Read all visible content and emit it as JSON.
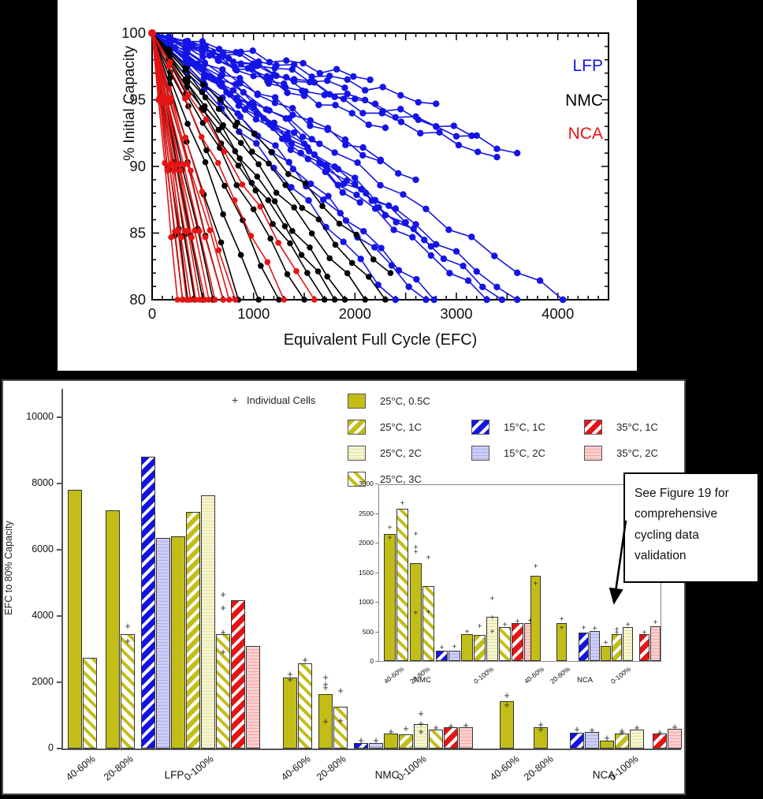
{
  "annotation": {
    "lines": [
      "See Figure 19 for",
      "comprehensive",
      "cycling data",
      "validation"
    ]
  },
  "chart_data": [
    {
      "type": "line",
      "title": "",
      "xlabel": "Equivalent Full Cycle (EFC)",
      "ylabel": "% Initial Capacity",
      "xlim": [
        0,
        4500
      ],
      "ylim": [
        80,
        100
      ],
      "xticks": [
        0,
        1000,
        2000,
        3000,
        4000
      ],
      "yticks": [
        80,
        85,
        90,
        95,
        100
      ],
      "grid": false,
      "legend_position": "upper right",
      "note": "Each line is one cell starting at (0,100); end = [EFC at last point, % capacity at last point], values approximate",
      "series": [
        {
          "name": "LFP",
          "color": "#1414e6",
          "lines": [
            [
              2400,
              80
            ],
            [
              2700,
              80
            ],
            [
              2780,
              80
            ],
            [
              3300,
              80
            ],
            [
              3450,
              80
            ],
            [
              3600,
              80
            ],
            [
              4050,
              80
            ],
            [
              3600,
              91
            ],
            [
              3400,
              90.7
            ],
            [
              3150,
              92.3
            ],
            [
              2800,
              94.7
            ],
            [
              2600,
              89
            ],
            [
              2300,
              92.9
            ],
            [
              2250,
              90.4
            ],
            [
              2050,
              87.3
            ],
            [
              2500,
              85.8
            ],
            [
              1900,
              95.9
            ],
            [
              1500,
              95.3
            ],
            [
              1300,
              96.2
            ],
            [
              1650,
              91.7
            ],
            [
              2750,
              84
            ],
            [
              2150,
              96.5
            ]
          ]
        },
        {
          "name": "NMC",
          "color": "#000000",
          "lines": [
            [
              300,
              80
            ],
            [
              350,
              80
            ],
            [
              420,
              80
            ],
            [
              500,
              80
            ],
            [
              600,
              80
            ],
            [
              700,
              80
            ],
            [
              850,
              80
            ],
            [
              1050,
              80
            ],
            [
              1250,
              80
            ],
            [
              1500,
              80
            ],
            [
              1700,
              80
            ],
            [
              1800,
              80
            ],
            [
              1900,
              80
            ],
            [
              2100,
              80
            ],
            [
              2300,
              80
            ],
            [
              2350,
              82
            ]
          ]
        },
        {
          "name": "NCA",
          "color": "#e61414",
          "lines": [
            [
              250,
              80
            ],
            [
              300,
              80
            ],
            [
              340,
              80
            ],
            [
              380,
              80
            ],
            [
              430,
              80
            ],
            [
              470,
              80
            ],
            [
              520,
              80
            ],
            [
              560,
              80
            ],
            [
              620,
              80
            ],
            [
              700,
              80
            ],
            [
              760,
              80
            ],
            [
              820,
              80
            ],
            [
              1300,
              80
            ],
            [
              1600,
              80
            ]
          ]
        }
      ]
    },
    {
      "type": "bar",
      "ylabel": "EFC to 80% Capacity",
      "ylim": [
        0,
        10000
      ],
      "yticks": [
        0,
        2000,
        4000,
        6000,
        8000,
        10000
      ],
      "marker_symbol": "+",
      "marker_note": "Individual Cells",
      "colors": {
        "olive": "#c2be17",
        "pale_yellow": "#f5f5cf",
        "blue": "#1414e0",
        "lavender": "#cdcdf6",
        "red": "#e61414",
        "pink": "#fbcfcf"
      },
      "legend": [
        {
          "label": "25°C, 0.5C",
          "pattern": "olive-solid"
        },
        {
          "label": "25°C, 1C",
          "pattern": "olive-hatch-dark"
        },
        {
          "label": "25°C, 2C",
          "pattern": "pale-lines"
        },
        {
          "label": "25°C, 3C",
          "pattern": "olive-hatch-light"
        },
        {
          "label": "15°C, 1C",
          "pattern": "blue-hatch"
        },
        {
          "label": "15°C, 2C",
          "pattern": "lavender-lines"
        },
        {
          "label": "35°C, 1C",
          "pattern": "red-hatch"
        },
        {
          "label": "35°C, 2C",
          "pattern": "pink-lines"
        }
      ],
      "groups": [
        {
          "chemistry": "LFP",
          "windows": [
            {
              "label": "40-60%",
              "bars": [
                {
                  "series": "25°C, 0.5C",
                  "pattern": "olive-solid",
                  "value": 7800
                },
                {
                  "series": "25°C, 1C",
                  "pattern": "olive-hatch-light",
                  "value": 2750
                }
              ]
            },
            {
              "label": "20-80%",
              "bars": [
                {
                  "series": "25°C, 0.5C",
                  "pattern": "olive-solid",
                  "value": 7200
                },
                {
                  "series": "25°C, 1C",
                  "pattern": "olive-hatch-light",
                  "value": 3450,
                  "plus": [
                    3700,
                    3250
                  ]
                }
              ]
            },
            {
              "label": "0-100%",
              "bars": [
                {
                  "series": "15°C, 1C",
                  "pattern": "blue-hatch",
                  "value": 8800
                },
                {
                  "series": "15°C, 2C",
                  "pattern": "lavender-lines",
                  "value": 6350
                },
                {
                  "series": "25°C, 0.5C",
                  "pattern": "olive-solid",
                  "value": 6400
                },
                {
                  "series": "25°C, 1C",
                  "pattern": "olive-hatch-dark",
                  "value": 7150
                },
                {
                  "series": "25°C, 2C",
                  "pattern": "pale-lines",
                  "value": 7650
                },
                {
                  "series": "25°C, 3C",
                  "pattern": "olive-hatch-light",
                  "value": 3450,
                  "plus": [
                    4650,
                    4250,
                    3500,
                    2900
                  ]
                },
                {
                  "series": "35°C, 1C",
                  "pattern": "red-hatch",
                  "value": 4480
                },
                {
                  "series": "35°C, 2C",
                  "pattern": "pink-lines",
                  "value": 3100
                }
              ]
            }
          ]
        },
        {
          "chemistry": "NMC",
          "windows": [
            {
              "label": "40-60%",
              "bars": [
                {
                  "series": "25°C, 0.5C",
                  "pattern": "olive-solid",
                  "value": 2150,
                  "plus": [
                    2250,
                    2080
                  ]
                },
                {
                  "series": "25°C, 1C",
                  "pattern": "olive-hatch-light",
                  "value": 2570,
                  "plus": [
                    2670
                  ]
                }
              ]
            },
            {
              "label": "20-80%",
              "bars": [
                {
                  "series": "25°C, 0.5C",
                  "pattern": "olive-solid",
                  "value": 1650,
                  "plus": [
                    2150,
                    1920,
                    1840,
                    810
                  ]
                },
                {
                  "series": "25°C, 1C",
                  "pattern": "olive-hatch-light",
                  "value": 1270,
                  "plus": [
                    1750,
                    830
                  ]
                }
              ]
            },
            {
              "label": "0-100%",
              "bars": [
                {
                  "series": "15°C, 1C",
                  "pattern": "blue-hatch",
                  "value": 170,
                  "plus": [
                    230
                  ]
                },
                {
                  "series": "15°C, 2C",
                  "pattern": "lavender-lines",
                  "value": 175,
                  "plus": [
                    240
                  ]
                },
                {
                  "series": "25°C, 0.5C",
                  "pattern": "olive-solid",
                  "value": 450,
                  "plus": [
                    500
                  ]
                },
                {
                  "series": "25°C, 1C",
                  "pattern": "olive-hatch-dark",
                  "value": 440,
                  "plus": [
                    590
                  ]
                },
                {
                  "series": "25°C, 2C",
                  "pattern": "pale-lines",
                  "value": 750,
                  "plus": [
                    1050,
                    730,
                    490
                  ]
                },
                {
                  "series": "25°C, 3C",
                  "pattern": "olive-hatch-light",
                  "value": 580,
                  "plus": [
                    610
                  ]
                },
                {
                  "series": "35°C, 1C",
                  "pattern": "red-hatch",
                  "value": 640,
                  "plus": [
                    670
                  ]
                },
                {
                  "series": "35°C, 2C",
                  "pattern": "pink-lines",
                  "value": 640,
                  "plus": [
                    680
                  ]
                }
              ]
            }
          ]
        },
        {
          "chemistry": "NCA",
          "windows": [
            {
              "label": "40-60%",
              "bars": [
                {
                  "series": "25°C, 0.5C",
                  "pattern": "olive-solid",
                  "value": 1440,
                  "plus": [
                    1600,
                    1310
                  ]
                }
              ]
            },
            {
              "label": "20-80%",
              "bars": [
                {
                  "series": "25°C, 0.5C",
                  "pattern": "olive-solid",
                  "value": 640,
                  "plus": [
                    710,
                    560
                  ]
                }
              ]
            },
            {
              "label": "0-100%",
              "bars": [
                {
                  "series": "15°C, 1C",
                  "pattern": "blue-hatch",
                  "value": 480,
                  "plus": [
                    560
                  ]
                },
                {
                  "series": "15°C, 2C",
                  "pattern": "lavender-lines",
                  "value": 510,
                  "plus": [
                    550
                  ]
                },
                {
                  "series": "25°C, 0.5C",
                  "pattern": "olive-solid",
                  "value": 250,
                  "plus": [
                    310
                  ]
                },
                {
                  "series": "25°C, 1C",
                  "pattern": "olive-hatch-dark",
                  "value": 450,
                  "plus": [
                    530,
                    480
                  ]
                },
                {
                  "series": "25°C, 2C",
                  "pattern": "pale-lines",
                  "value": 570,
                  "plus": [
                    610
                  ]
                },
                {
                  "series": "25°C, 3C",
                  "pattern": "olive-hatch-light",
                  "value": null
                },
                {
                  "series": "35°C, 1C",
                  "pattern": "red-hatch",
                  "value": 450,
                  "plus": [
                    480
                  ]
                },
                {
                  "series": "35°C, 2C",
                  "pattern": "pink-lines",
                  "value": 590,
                  "plus": [
                    650
                  ]
                }
              ]
            }
          ]
        }
      ],
      "inset": {
        "ylim": [
          0,
          3000
        ],
        "yticks": [
          0,
          500,
          1000,
          1500,
          2000,
          2500,
          3000
        ],
        "chemistries": [
          "NMC",
          "NCA"
        ]
      }
    }
  ]
}
